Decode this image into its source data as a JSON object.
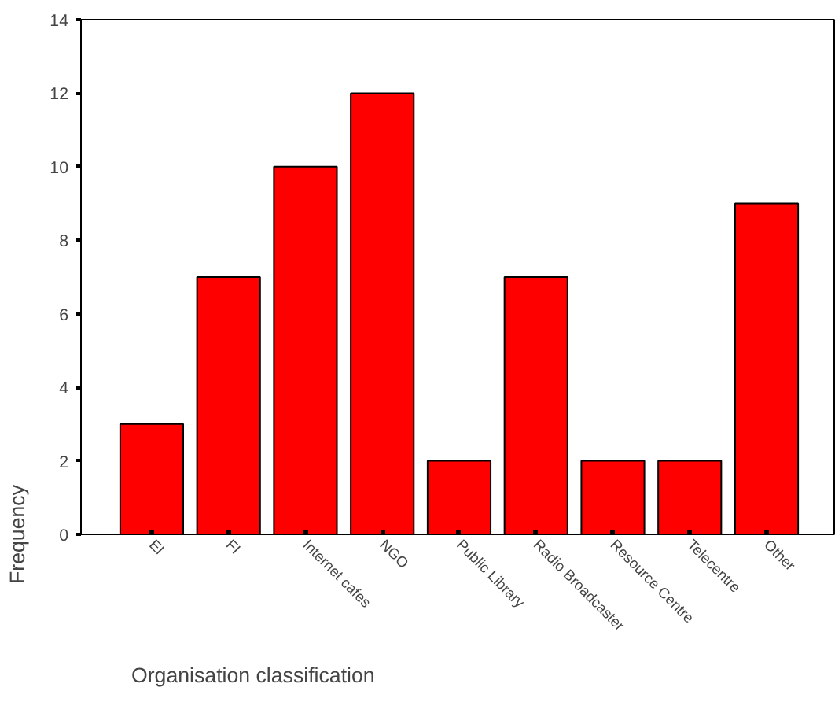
{
  "chart_data": {
    "type": "bar",
    "xlabel": "Organisation classification",
    "ylabel": "Frequency",
    "categories": [
      "EI",
      "FI",
      "Internet cafes",
      "NGO",
      "Public Library",
      "Radio Broadcaster",
      "Resource Centre",
      "Telecentre",
      "Other"
    ],
    "values": [
      3,
      7,
      10,
      12,
      2,
      7,
      2,
      2,
      9
    ],
    "color": "#ff0000",
    "ylim": [
      0,
      14
    ],
    "yticks": [
      0,
      2,
      4,
      6,
      8,
      10,
      12,
      14
    ],
    "grid": false
  }
}
